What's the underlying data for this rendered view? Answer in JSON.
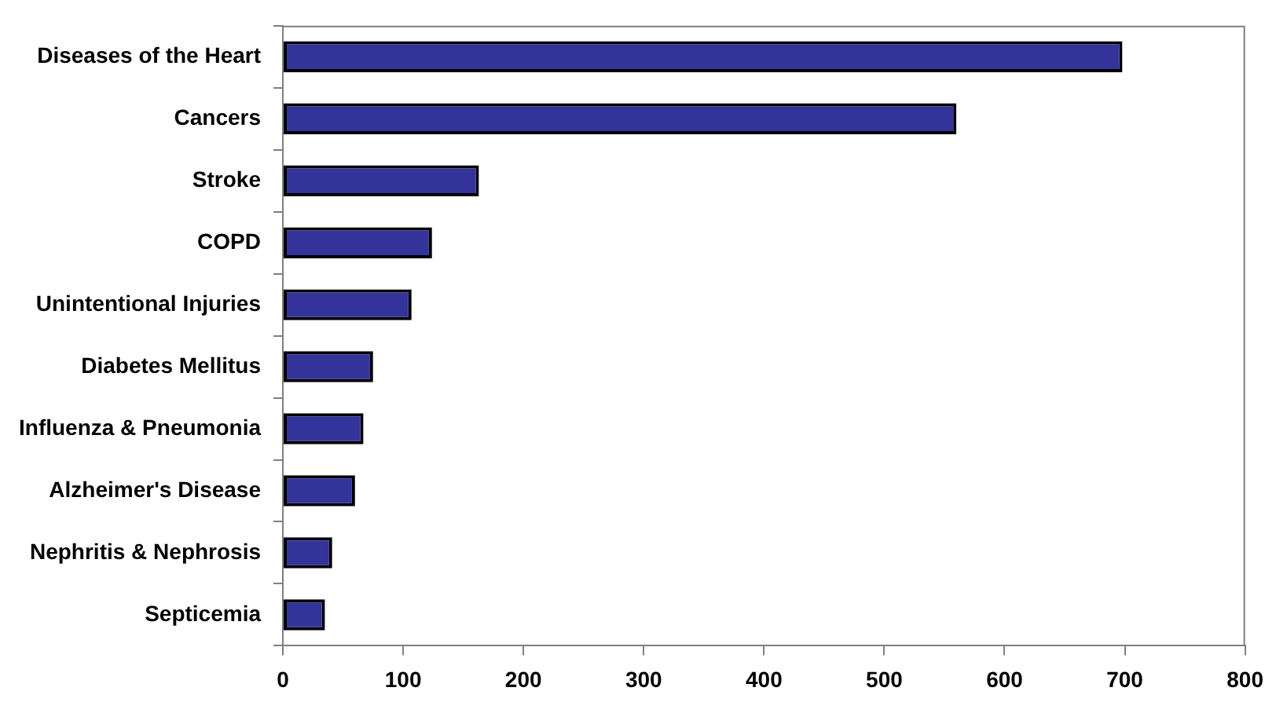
{
  "chart_data": {
    "type": "bar",
    "orientation": "horizontal",
    "categories": [
      "Diseases of the Heart",
      "Cancers",
      "Stroke",
      "COPD",
      "Unintentional Injuries",
      "Diabetes Mellitus",
      "Influenza & Pneumonia",
      "Alzheimer's Disease",
      "Nephritis & Nephrosis",
      "Septicemia"
    ],
    "values": [
      698,
      560,
      163,
      124,
      107,
      75,
      67,
      60,
      41,
      35
    ],
    "color": "#333399",
    "xlim": [
      0,
      800
    ],
    "xticks": [
      0,
      100,
      200,
      300,
      400,
      500,
      600,
      700,
      800
    ],
    "grid": false,
    "legend": false
  }
}
